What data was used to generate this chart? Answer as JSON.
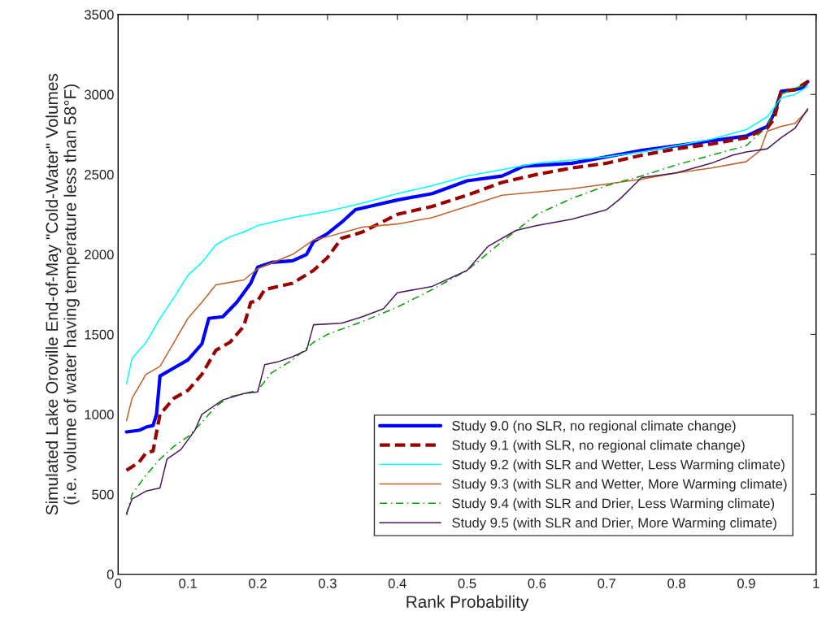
{
  "chart_data": {
    "type": "line",
    "xlabel": "Rank Probability",
    "ylabel": "Simulated Lake Oroville End-of-May \"Cold-Water\" Volumes\n(i.e. volume of water having temperature less than 58°F)",
    "xlim": [
      0,
      1
    ],
    "xticks": [
      0,
      0.1,
      0.2,
      0.3,
      0.4,
      0.5,
      0.6,
      0.7,
      0.8,
      0.9,
      1
    ],
    "ylim": [
      0,
      3500
    ],
    "yticks": [
      0,
      500,
      1000,
      1500,
      2000,
      2500,
      3000,
      3500
    ],
    "grid": false,
    "legend": "bottom right",
    "series": [
      {
        "name": "Study 9.0 (no SLR, no regional climate change)",
        "color": "#0000ff",
        "line_style": "solid",
        "x": [
          0.012,
          0.03,
          0.04,
          0.05,
          0.055,
          0.06,
          0.08,
          0.1,
          0.12,
          0.13,
          0.15,
          0.17,
          0.19,
          0.2,
          0.22,
          0.25,
          0.27,
          0.28,
          0.3,
          0.32,
          0.34,
          0.37,
          0.4,
          0.45,
          0.5,
          0.55,
          0.58,
          0.65,
          0.7,
          0.75,
          0.8,
          0.85,
          0.9,
          0.92,
          0.93,
          0.94,
          0.95,
          0.97,
          0.98,
          0.988
        ],
        "values": [
          890,
          900,
          920,
          930,
          1000,
          1240,
          1290,
          1340,
          1440,
          1600,
          1610,
          1700,
          1820,
          1920,
          1950,
          1960,
          2000,
          2080,
          2130,
          2200,
          2280,
          2310,
          2340,
          2380,
          2460,
          2490,
          2550,
          2570,
          2610,
          2650,
          2680,
          2710,
          2740,
          2780,
          2800,
          2880,
          3020,
          3030,
          3040,
          3080
        ]
      },
      {
        "name": "Study 9.1 (with SLR, no regional climate change)",
        "color": "#990000",
        "line_style": "dashed",
        "x": [
          0.012,
          0.03,
          0.04,
          0.05,
          0.06,
          0.08,
          0.1,
          0.12,
          0.14,
          0.16,
          0.18,
          0.19,
          0.2,
          0.21,
          0.25,
          0.28,
          0.3,
          0.32,
          0.35,
          0.4,
          0.45,
          0.5,
          0.55,
          0.6,
          0.65,
          0.7,
          0.75,
          0.8,
          0.85,
          0.9,
          0.93,
          0.94,
          0.95,
          0.97,
          0.988
        ],
        "values": [
          650,
          700,
          760,
          770,
          1000,
          1100,
          1150,
          1250,
          1400,
          1450,
          1550,
          1700,
          1710,
          1780,
          1820,
          1900,
          1980,
          2100,
          2140,
          2250,
          2300,
          2370,
          2450,
          2500,
          2540,
          2570,
          2620,
          2660,
          2690,
          2730,
          2790,
          2850,
          3020,
          3030,
          3080
        ]
      },
      {
        "name": "Study 9.2 (with SLR and Wetter, Less Warming climate)",
        "color": "#00ffff",
        "line_style": "solid",
        "x": [
          0.012,
          0.02,
          0.04,
          0.06,
          0.08,
          0.1,
          0.12,
          0.14,
          0.16,
          0.18,
          0.2,
          0.25,
          0.3,
          0.35,
          0.4,
          0.45,
          0.5,
          0.55,
          0.6,
          0.65,
          0.7,
          0.75,
          0.8,
          0.85,
          0.9,
          0.93,
          0.95,
          0.97,
          0.988
        ],
        "values": [
          1190,
          1350,
          1450,
          1600,
          1730,
          1870,
          1950,
          2060,
          2110,
          2140,
          2180,
          2230,
          2270,
          2320,
          2380,
          2430,
          2490,
          2530,
          2570,
          2590,
          2610,
          2640,
          2680,
          2720,
          2780,
          2860,
          2980,
          3000,
          3050
        ]
      },
      {
        "name": "Study 9.3 (with SLR and Wetter, More Warming climate)",
        "color": "#c0622a",
        "line_style": "solid",
        "x": [
          0.012,
          0.02,
          0.04,
          0.06,
          0.08,
          0.1,
          0.12,
          0.14,
          0.18,
          0.2,
          0.25,
          0.28,
          0.3,
          0.35,
          0.4,
          0.45,
          0.5,
          0.55,
          0.6,
          0.65,
          0.7,
          0.75,
          0.8,
          0.85,
          0.9,
          0.92,
          0.93,
          0.95,
          0.97,
          0.988
        ],
        "values": [
          960,
          1100,
          1250,
          1300,
          1450,
          1600,
          1700,
          1810,
          1840,
          1910,
          2000,
          2090,
          2110,
          2170,
          2190,
          2230,
          2300,
          2370,
          2390,
          2410,
          2440,
          2470,
          2510,
          2540,
          2580,
          2650,
          2770,
          2800,
          2820,
          2900
        ]
      },
      {
        "name": "Study 9.4 (with SLR and Drier, Less Warming climate)",
        "color": "#00a000",
        "line_style": "dashdot",
        "x": [
          0.012,
          0.02,
          0.04,
          0.06,
          0.08,
          0.1,
          0.12,
          0.14,
          0.16,
          0.2,
          0.22,
          0.25,
          0.28,
          0.3,
          0.35,
          0.4,
          0.45,
          0.5,
          0.55,
          0.6,
          0.65,
          0.7,
          0.75,
          0.8,
          0.85,
          0.9,
          0.93,
          0.95,
          0.97,
          0.988
        ],
        "values": [
          370,
          500,
          620,
          720,
          800,
          860,
          950,
          1050,
          1110,
          1150,
          1260,
          1340,
          1450,
          1500,
          1580,
          1670,
          1780,
          1900,
          2080,
          2250,
          2350,
          2430,
          2490,
          2560,
          2620,
          2680,
          2800,
          3000,
          3040,
          3060
        ]
      },
      {
        "name": "Study 9.5 (with SLR and Drier, More Warming climate)",
        "color": "#4b1a5a",
        "line_style": "solid",
        "x": [
          0.012,
          0.02,
          0.04,
          0.06,
          0.07,
          0.09,
          0.11,
          0.12,
          0.15,
          0.18,
          0.2,
          0.21,
          0.23,
          0.25,
          0.27,
          0.28,
          0.32,
          0.35,
          0.38,
          0.4,
          0.45,
          0.5,
          0.53,
          0.57,
          0.6,
          0.65,
          0.7,
          0.72,
          0.75,
          0.8,
          0.85,
          0.88,
          0.9,
          0.93,
          0.95,
          0.97,
          0.988
        ],
        "values": [
          380,
          470,
          520,
          540,
          720,
          780,
          900,
          1000,
          1090,
          1130,
          1140,
          1310,
          1330,
          1360,
          1400,
          1560,
          1570,
          1610,
          1660,
          1760,
          1800,
          1900,
          2050,
          2150,
          2180,
          2220,
          2280,
          2350,
          2480,
          2510,
          2570,
          2620,
          2640,
          2660,
          2730,
          2790,
          2910
        ]
      }
    ]
  }
}
